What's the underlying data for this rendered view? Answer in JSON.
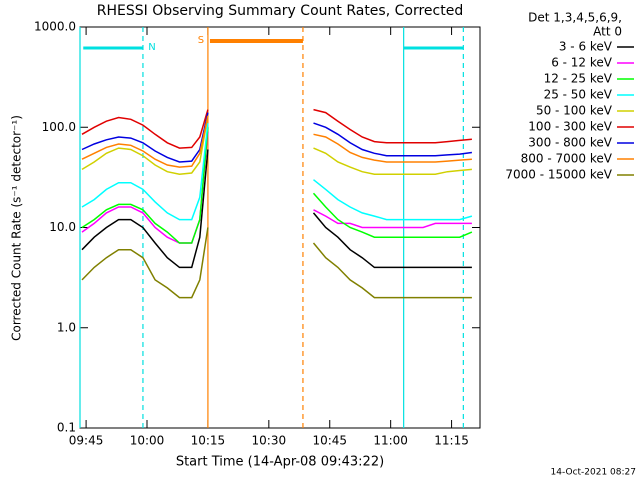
{
  "chart_data": {
    "type": "line",
    "title": "RHESSI Observing Summary Count Rates, Corrected",
    "x_label": "Start Time (14-Apr-08 09:43:22)",
    "y_label": "Corrected Count Rate (s⁻¹ detector⁻¹)",
    "legend_title": [
      "Det 1,3,4,5,6,9,",
      "Att 0"
    ],
    "footer": "14-Oct-2021 08:27",
    "log_y": true,
    "legend": "right",
    "xlim": [
      583.5,
      682
    ],
    "ylim": [
      0.1,
      1000
    ],
    "xticks": [
      {
        "value": 585,
        "label": "09:45"
      },
      {
        "value": 600,
        "label": "10:00"
      },
      {
        "value": 615,
        "label": "10:15"
      },
      {
        "value": 630,
        "label": "10:30"
      },
      {
        "value": 645,
        "label": "10:45"
      },
      {
        "value": 660,
        "label": "11:00"
      },
      {
        "value": 675,
        "label": "11:15"
      }
    ],
    "yticks": [
      {
        "value": 1000,
        "label": "1000.0"
      },
      {
        "value": 100,
        "label": "100.0"
      },
      {
        "value": 10,
        "label": "10.0"
      },
      {
        "value": 1,
        "label": "1.0"
      },
      0.1
    ],
    "vlines": [
      {
        "x": 583.5,
        "color": "#00e0e0",
        "dashed": false
      },
      {
        "x": 599.0,
        "color": "#00e0e0",
        "dashed": true
      },
      {
        "x": 615.0,
        "color": "#ff8000",
        "dashed": false
      },
      {
        "x": 638.4,
        "color": "#ff8000",
        "dashed": true
      },
      {
        "x": 663.2,
        "color": "#00e0e0",
        "dashed": false
      },
      {
        "x": 677.9,
        "color": "#00e0e0",
        "dashed": true
      }
    ],
    "bars": [
      {
        "label": "N",
        "color": "#00e0e0",
        "start": 584.3,
        "end": 599.0
      },
      {
        "label": "S",
        "color": "#ff8000",
        "start": 615.5,
        "end": 638.4
      },
      {
        "color": "#00e0e0",
        "start": 663.2,
        "end": 677.9
      }
    ],
    "x": [
      584,
      587,
      590,
      593,
      596,
      599,
      602,
      605,
      608,
      611,
      613,
      615,
      628,
      641,
      644,
      647,
      650,
      653,
      656,
      659,
      662,
      665,
      668,
      671,
      674,
      677,
      680
    ],
    "series": [
      {
        "name": "3 - 6 keV",
        "color": "#000000",
        "values": [
          6,
          8,
          10,
          12,
          12,
          10,
          7,
          5,
          4,
          4,
          8,
          60,
          null,
          14,
          10,
          8,
          6,
          5,
          4,
          4,
          4,
          4,
          4,
          4,
          4,
          4,
          4
        ]
      },
      {
        "name": "6 - 12 keV",
        "color": "#ff00ff",
        "values": [
          9,
          11,
          14,
          16,
          16,
          14,
          10,
          8,
          7,
          7,
          12,
          90,
          null,
          15,
          13,
          11,
          11,
          10,
          10,
          10,
          10,
          10,
          10,
          11,
          11,
          11,
          11
        ]
      },
      {
        "name": "12 - 25 keV",
        "color": "#00ff00",
        "values": [
          10,
          12,
          15,
          17,
          17,
          15,
          11,
          9,
          7,
          7,
          12,
          100,
          null,
          22,
          16,
          12,
          10,
          9,
          8,
          8,
          8,
          8,
          8,
          8,
          8,
          8,
          9
        ]
      },
      {
        "name": "25 - 50 keV",
        "color": "#00ffff",
        "values": [
          16,
          19,
          24,
          28,
          28,
          24,
          18,
          14,
          12,
          12,
          20,
          110,
          null,
          30,
          24,
          19,
          16,
          14,
          13,
          12,
          12,
          12,
          12,
          12,
          12,
          12,
          13
        ]
      },
      {
        "name": "50 - 100 keV",
        "color": "#d0d000",
        "values": [
          38,
          45,
          55,
          62,
          60,
          52,
          42,
          36,
          34,
          35,
          45,
          130,
          null,
          62,
          55,
          45,
          40,
          36,
          34,
          34,
          34,
          34,
          34,
          34,
          36,
          37,
          38
        ]
      },
      {
        "name": "100 - 300 keV",
        "color": "#e00000",
        "values": [
          85,
          100,
          115,
          125,
          120,
          105,
          85,
          70,
          62,
          63,
          80,
          150,
          null,
          150,
          140,
          115,
          95,
          80,
          72,
          70,
          70,
          70,
          70,
          70,
          72,
          74,
          76
        ]
      },
      {
        "name": "300 - 800 keV",
        "color": "#0000e0",
        "values": [
          60,
          68,
          75,
          80,
          78,
          70,
          58,
          50,
          45,
          46,
          60,
          140,
          null,
          110,
          100,
          85,
          70,
          60,
          55,
          52,
          52,
          52,
          52,
          52,
          53,
          54,
          56
        ]
      },
      {
        "name": "800 - 7000 keV",
        "color": "#ff8000",
        "values": [
          48,
          55,
          63,
          68,
          66,
          58,
          48,
          42,
          40,
          41,
          55,
          130,
          null,
          85,
          80,
          68,
          56,
          50,
          47,
          45,
          45,
          45,
          45,
          45,
          46,
          47,
          48
        ]
      },
      {
        "name": "7000 - 15000 keV",
        "color": "#808000",
        "values": [
          3,
          4,
          5,
          6,
          6,
          5,
          3,
          2.5,
          2,
          2,
          3,
          10,
          null,
          7,
          5,
          4,
          3,
          2.5,
          2,
          2,
          2,
          2,
          2,
          2,
          2,
          2,
          2
        ]
      }
    ]
  }
}
